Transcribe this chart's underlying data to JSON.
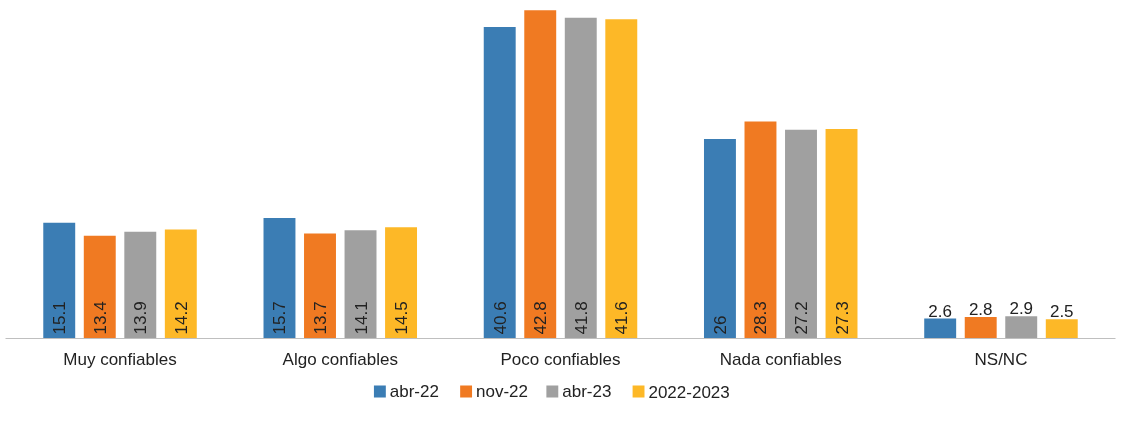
{
  "chart_data": {
    "type": "bar",
    "categories": [
      "Muy confiables",
      "Algo confiables",
      "Poco confiables",
      "Nada confiables",
      "NS/NC"
    ],
    "series": [
      {
        "name": "abr-22",
        "color": "#3b7db4",
        "values": [
          15.1,
          15.7,
          40.6,
          26,
          2.6
        ]
      },
      {
        "name": "nov-22",
        "color": "#f07a22",
        "values": [
          13.4,
          13.7,
          42.8,
          28.3,
          2.8
        ]
      },
      {
        "name": "abr-23",
        "color": "#a0a0a0",
        "values": [
          13.9,
          14.1,
          41.8,
          27.2,
          2.9
        ]
      },
      {
        "name": "2022-2023",
        "color": "#fdb827",
        "values": [
          14.2,
          14.5,
          41.6,
          27.3,
          2.5
        ]
      }
    ],
    "data_labels": true,
    "legend": "bottom"
  }
}
